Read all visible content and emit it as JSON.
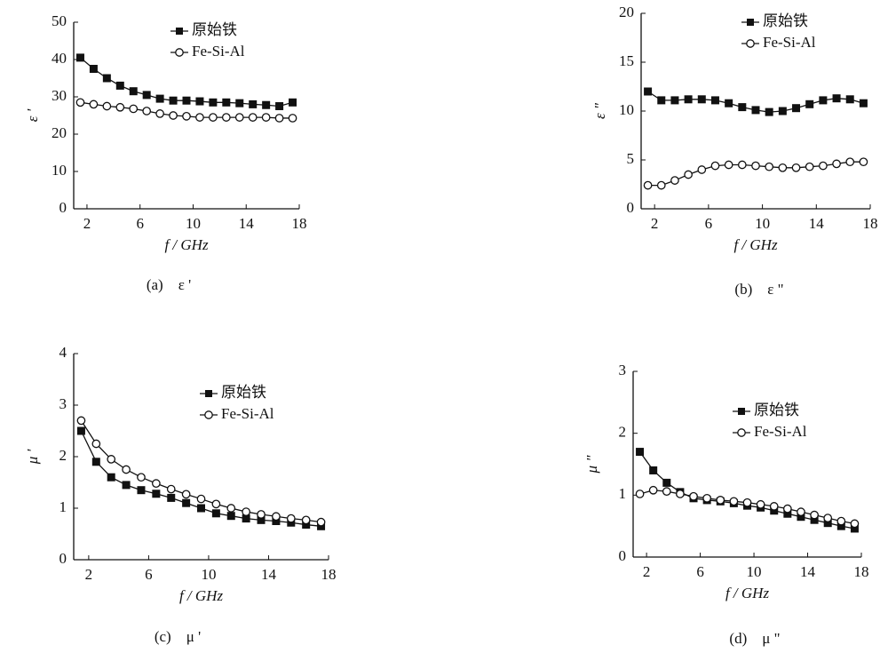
{
  "chart_data": [
    {
      "type": "line",
      "ylabel": "ε '",
      "xlabel": "f / GHz",
      "caption": "(a)　ε '",
      "x": [
        1.5,
        2.5,
        3.5,
        4.5,
        5.5,
        6.5,
        7.5,
        8.5,
        9.5,
        10.5,
        11.5,
        12.5,
        13.5,
        14.5,
        15.5,
        16.5,
        17.5
      ],
      "xlim": [
        1,
        18
      ],
      "xticks": [
        2,
        6,
        10,
        14,
        18
      ],
      "ylim": [
        0,
        50
      ],
      "yticks": [
        0,
        10,
        20,
        30,
        40,
        50
      ],
      "legend": "upper right",
      "series": [
        {
          "name": "原始铁",
          "color": "#111111",
          "marker": "square",
          "values": [
            40.5,
            37.5,
            35,
            33,
            31.5,
            30.5,
            29.5,
            29,
            29,
            28.8,
            28.5,
            28.5,
            28.3,
            28,
            27.8,
            27.5,
            28.5
          ]
        },
        {
          "name": "Fe-Si-Al",
          "color": "#111111",
          "marker": "circle",
          "values": [
            28.5,
            28,
            27.5,
            27.2,
            26.8,
            26.2,
            25.5,
            25,
            24.8,
            24.5,
            24.5,
            24.5,
            24.5,
            24.5,
            24.5,
            24.3,
            24.3
          ]
        }
      ]
    },
    {
      "type": "line",
      "ylabel": "ε \"",
      "xlabel": "f / GHz",
      "caption": "(b)　ε \"",
      "x": [
        1.5,
        2.5,
        3.5,
        4.5,
        5.5,
        6.5,
        7.5,
        8.5,
        9.5,
        10.5,
        11.5,
        12.5,
        13.5,
        14.5,
        15.5,
        16.5,
        17.5
      ],
      "xlim": [
        1,
        18
      ],
      "xticks": [
        2,
        6,
        10,
        14,
        18
      ],
      "ylim": [
        0,
        20
      ],
      "yticks": [
        0,
        5,
        10,
        15,
        20
      ],
      "legend": "upper right",
      "series": [
        {
          "name": "原始铁",
          "color": "#111111",
          "marker": "square",
          "values": [
            12,
            11.1,
            11.1,
            11.2,
            11.2,
            11.1,
            10.8,
            10.4,
            10.1,
            9.9,
            10,
            10.3,
            10.7,
            11.1,
            11.3,
            11.2,
            10.8
          ]
        },
        {
          "name": "Fe-Si-Al",
          "color": "#111111",
          "marker": "circle",
          "values": [
            2.4,
            2.4,
            2.9,
            3.5,
            4,
            4.4,
            4.5,
            4.5,
            4.4,
            4.3,
            4.2,
            4.2,
            4.3,
            4.4,
            4.6,
            4.8,
            4.8
          ]
        }
      ]
    },
    {
      "type": "line",
      "ylabel": "μ '",
      "xlabel": "f / GHz",
      "caption": "(c)　μ '",
      "x": [
        1.5,
        2.5,
        3.5,
        4.5,
        5.5,
        6.5,
        7.5,
        8.5,
        9.5,
        10.5,
        11.5,
        12.5,
        13.5,
        14.5,
        15.5,
        16.5,
        17.5
      ],
      "xlim": [
        1,
        18
      ],
      "xticks": [
        2,
        6,
        10,
        14,
        18
      ],
      "ylim": [
        0,
        4
      ],
      "yticks": [
        0,
        1,
        2,
        3,
        4
      ],
      "legend": "upper right",
      "series": [
        {
          "name": "原始铁",
          "color": "#111111",
          "marker": "square",
          "values": [
            2.5,
            1.9,
            1.6,
            1.45,
            1.35,
            1.28,
            1.2,
            1.1,
            1.0,
            0.9,
            0.85,
            0.8,
            0.77,
            0.75,
            0.72,
            0.68,
            0.65
          ]
        },
        {
          "name": "Fe-Si-Al",
          "color": "#111111",
          "marker": "circle",
          "values": [
            2.7,
            2.25,
            1.95,
            1.75,
            1.6,
            1.48,
            1.37,
            1.27,
            1.18,
            1.08,
            1.0,
            0.93,
            0.88,
            0.84,
            0.8,
            0.77,
            0.73
          ]
        }
      ]
    },
    {
      "type": "line",
      "ylabel": "μ \"",
      "xlabel": "f / GHz",
      "caption": "(d)　μ \"",
      "x": [
        1.5,
        2.5,
        3.5,
        4.5,
        5.5,
        6.5,
        7.5,
        8.5,
        9.5,
        10.5,
        11.5,
        12.5,
        13.5,
        14.5,
        15.5,
        16.5,
        17.5
      ],
      "xlim": [
        1,
        18
      ],
      "xticks": [
        2,
        6,
        10,
        14,
        18
      ],
      "ylim": [
        0,
        3
      ],
      "yticks": [
        0,
        1,
        2,
        3
      ],
      "legend": "upper right",
      "series": [
        {
          "name": "原始铁",
          "color": "#111111",
          "marker": "square",
          "values": [
            1.7,
            1.4,
            1.2,
            1.05,
            0.95,
            0.92,
            0.9,
            0.87,
            0.83,
            0.8,
            0.75,
            0.7,
            0.65,
            0.6,
            0.55,
            0.5,
            0.46
          ]
        },
        {
          "name": "Fe-Si-Al",
          "color": "#111111",
          "marker": "circle",
          "values": [
            1.02,
            1.08,
            1.06,
            1.02,
            0.98,
            0.95,
            0.92,
            0.9,
            0.88,
            0.85,
            0.82,
            0.78,
            0.73,
            0.68,
            0.63,
            0.58,
            0.54
          ]
        }
      ]
    }
  ]
}
